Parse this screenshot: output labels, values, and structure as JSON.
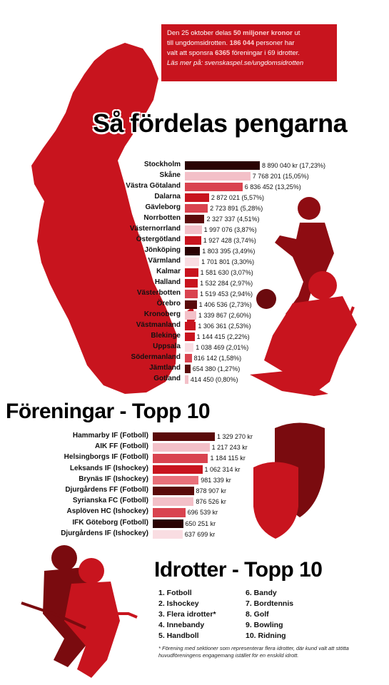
{
  "infobox": {
    "line1_pre": "Den 25 oktober delas ",
    "line1_amount": "50 miljoner kronor",
    "line1_post": " ut",
    "line2_pre": "till ungdomsidrotten. ",
    "line2_people": "186 044",
    "line2_post": " personer har",
    "line3_pre": "valt att sponsra ",
    "line3_assoc": "6365",
    "line3_post": " föreningar i 69 idrotter.",
    "link": "Läs mer på: svenskaspel.se/ungdomsidrotten"
  },
  "colors": {
    "primary": "#c8141e",
    "dark": "#5a0a0a",
    "light": "#f3c0c8",
    "mid": "#d9434f",
    "darkest": "#2a0303"
  },
  "chart_data": [
    {
      "type": "bar",
      "orientation": "horizontal",
      "title": "Så fördelas pengarna",
      "categories": [
        "Stockholm",
        "Skåne",
        "Västra Götaland",
        "Dalarna",
        "Gävleborg",
        "Norrbotten",
        "Västernorrland",
        "Östergötland",
        "Jönköping",
        "Värmland",
        "Kalmar",
        "Halland",
        "Västerbotten",
        "Örebro",
        "Kronoberg",
        "Västmanland",
        "Blekinge",
        "Uppsala",
        "Södermanland",
        "Jämtland",
        "Gotland"
      ],
      "values": [
        8890040,
        7768201,
        6836452,
        2872021,
        2723891,
        2327337,
        1997076,
        1927428,
        1803395,
        1701801,
        1581630,
        1532284,
        1519453,
        1406536,
        1339867,
        1306361,
        1144415,
        1038469,
        816142,
        654380,
        414450
      ],
      "value_labels": [
        "8 890 040 kr (17,23%)",
        "7 768 201 (15,05%)",
        "6 836 452 (13,25%)",
        "2 872 021 (5,57%)",
        "2 723 891 (5,28%)",
        "2 327 337 (4,51%)",
        "1 997 076 (3,87%)",
        "1 927 428 (3,74%)",
        "1 803 395 (3,49%)",
        "1 701 801 (3,30%)",
        "1 581 630 (3,07%)",
        "1 532 284 (2,97%)",
        "1 519 453 (2,94%)",
        "1 406 536 (2,73%)",
        "1 339 867 (2,60%)",
        "1 306 361 (2,53%)",
        "1 144 415 (2,22%)",
        "1 038 469 (2,01%)",
        "816 142 (1,58%)",
        "654 380 (1,27%)",
        "414 450 (0,80%)"
      ],
      "bar_colors": [
        "#2a0303",
        "#f3c0c8",
        "#d9434f",
        "#c8141e",
        "#d9434f",
        "#5a0a0a",
        "#f3c0c8",
        "#c8141e",
        "#2a0303",
        "#f9dde2",
        "#c8141e",
        "#c8141e",
        "#d9434f",
        "#5a0a0a",
        "#f3c0c8",
        "#c8141e",
        "#c8141e",
        "#f9dde2",
        "#d9434f",
        "#5a0a0a",
        "#f3c0c8"
      ]
    },
    {
      "type": "bar",
      "orientation": "horizontal",
      "title": "Föreningar - Topp 10",
      "categories": [
        "Hammarby IF (Fotboll)",
        "AIK FF (Fotboll)",
        "Helsingborgs IF (Fotboll)",
        "Leksands IF (Ishockey)",
        "Brynäs IF (Ishockey)",
        "Djurgårdens FF (Fotboll)",
        "Syrianska FC (Fotboll)",
        "Asplöven HC (Ishockey)",
        "IFK Göteborg (Fotboll)",
        "Djurgårdens IF (Ishockey)"
      ],
      "values": [
        1329270,
        1217243,
        1184115,
        1062314,
        981339,
        878907,
        876526,
        696539,
        650251,
        637699
      ],
      "value_labels": [
        "1 329 270 kr",
        "1 217 243 kr",
        "1 184 115 kr",
        "1 062 314 kr",
        "981 339 kr",
        "878 907 kr",
        "876 526 kr",
        "696 539 kr",
        "650 251 kr",
        "637 699 kr"
      ],
      "bar_colors": [
        "#5a0a0a",
        "#f3c0c8",
        "#d9434f",
        "#c8141e",
        "#e8707a",
        "#5a0a0a",
        "#f3c0c8",
        "#d9434f",
        "#2a0303",
        "#f9dde2"
      ]
    }
  ],
  "sports": {
    "title": "Idrotter - Topp 10",
    "items": [
      "1. Fotboll",
      "2. Ishockey",
      "3. Flera idrotter*",
      "4. Innebandy",
      "5. Handboll",
      "6. Bandy",
      "7. Bordtennis",
      "8. Golf",
      "9. Bowling",
      "10. Ridning"
    ],
    "footnote": "* Förening med sektioner som representerar flera idrotter, där kund valt att stötta huvudföreningens engagemang istället för en enskild idrott."
  }
}
